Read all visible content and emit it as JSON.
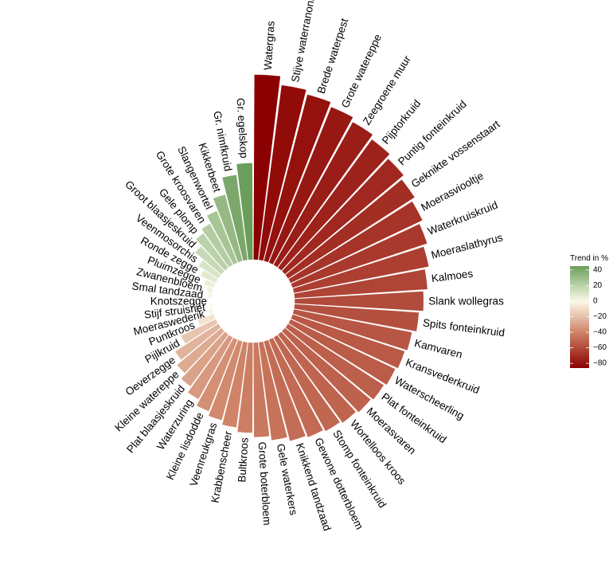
{
  "chart_data": {
    "type": "radial-bar",
    "title": "",
    "legend": {
      "title": "Trend in %",
      "ticks": [
        40,
        20,
        0,
        -20,
        -40,
        -60,
        -80
      ],
      "tick_labels": [
        "40",
        "20",
        "0",
        "−20",
        "−40",
        "−60",
        "−80"
      ],
      "range": [
        -86,
        45
      ],
      "placement": "right"
    },
    "color_scale": [
      {
        "value": -86,
        "color": "#8b0000"
      },
      {
        "value": -40,
        "color": "#cf8468"
      },
      {
        "value": 0,
        "color": "#fbfae9"
      },
      {
        "value": 45,
        "color": "#6b9e5a"
      }
    ],
    "categories": [
      "Watergras",
      "Stijve waterranonkel",
      "Brede waterpest",
      "Grote watereppe",
      "Zeegroene muur",
      "Pijptorkruid",
      "Puntig fonteinkruid",
      "Geknikte vossenstaart",
      "Moerasviooltje",
      "Waterkruiskruid",
      "Moeraslathyrus",
      "Kalmoes",
      "Slank wollegras",
      "Spits fonteinkruid",
      "Kamvaren",
      "Kransvederkruid",
      "Waterscheerling",
      "Plat fonteinkruid",
      "Moerasvaren",
      "Wortelloos kroos",
      "Stomp fonteinkruid",
      "Gewone dotterbloem",
      "Knikkend tandzaad",
      "Gele waterkers",
      "Grote boterbloem",
      "Bultkroos",
      "Krabbenscheer",
      "Veenreukgras",
      "Kleine lisdodde",
      "Waterzuring",
      "Plat blaasjeskruid",
      "Kleine watereppe",
      "Oeverzegge",
      "Pijlkruid",
      "Puntkroos",
      "Moeraswederik",
      "Stijf struisriet",
      "Knotszegge",
      "Smal tandzaad",
      "Zwanenbloem",
      "Pluimzegge",
      "Ronde zegge",
      "Veenmosorchis",
      "Groot blaasjeskruid",
      "Gele plomp",
      "Grote kroosvaren",
      "Slangenwortel",
      "Kikkerbeet",
      "Gr. nimfkruid",
      "Gr. egelskop"
    ],
    "values": [
      -86,
      -82,
      -80,
      -78,
      -76,
      -74,
      -72,
      -70,
      -68,
      -66,
      -64,
      -62,
      -60,
      -58,
      -56,
      -55,
      -54,
      -53,
      -52,
      -51,
      -50,
      -49,
      -48,
      -46,
      -44,
      -42,
      -40,
      -38,
      -36,
      -33,
      -30,
      -27,
      -24,
      -18,
      -8,
      -2,
      -1,
      0,
      2,
      3,
      5,
      8,
      11,
      16,
      20,
      22,
      26,
      32,
      40,
      45
    ]
  }
}
